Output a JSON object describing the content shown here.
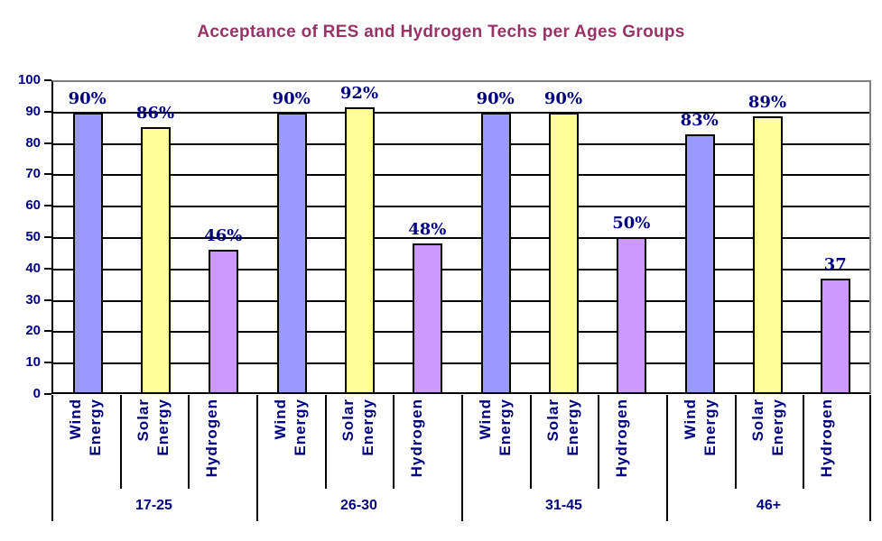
{
  "colors": {
    "title": "#993366",
    "axis_text": "#000080",
    "data_label_text": "#000080",
    "gridline": "#000000",
    "plot_border": "#808080",
    "bar_border": "#000000",
    "wind": "#9999FF",
    "solar": "#FFFF99",
    "hydrogen": "#CC99FF",
    "background": "#FFFFFF"
  },
  "chart_data": {
    "type": "bar",
    "title": "Acceptance of RES and Hydrogen Techs per Ages Groups",
    "xlabel": "",
    "ylabel": "",
    "ylim": [
      0,
      100
    ],
    "yticks": [
      0,
      10,
      20,
      30,
      40,
      50,
      60,
      70,
      80,
      90,
      100
    ],
    "grid": true,
    "legend": false,
    "categories_per_group": [
      "Wind Energy",
      "Solar Energy",
      "Hydrogen"
    ],
    "groups": [
      {
        "label": "17-25",
        "bars": [
          {
            "category": "Wind Energy",
            "series": "wind",
            "value": 90,
            "label": "90%"
          },
          {
            "category": "Solar Energy",
            "series": "solar",
            "value": 85.5,
            "label": "86%"
          },
          {
            "category": "Hydrogen",
            "series": "hydrogen",
            "value": 46,
            "label": "46%"
          }
        ]
      },
      {
        "label": "26-30",
        "bars": [
          {
            "category": "Wind Energy",
            "series": "wind",
            "value": 90,
            "label": "90%"
          },
          {
            "category": "Solar Energy",
            "series": "solar",
            "value": 92,
            "label": "92%"
          },
          {
            "category": "Hydrogen",
            "series": "hydrogen",
            "value": 48,
            "label": "48%"
          }
        ]
      },
      {
        "label": "31-45",
        "bars": [
          {
            "category": "Wind Energy",
            "series": "wind",
            "value": 90,
            "label": "90%"
          },
          {
            "category": "Solar Energy",
            "series": "solar",
            "value": 90,
            "label": "90%"
          },
          {
            "category": "Hydrogen",
            "series": "hydrogen",
            "value": 50,
            "label": "50%"
          }
        ]
      },
      {
        "label": "46+",
        "bars": [
          {
            "category": "Wind Energy",
            "series": "wind",
            "value": 83,
            "label": "83%"
          },
          {
            "category": "Solar Energy",
            "series": "solar",
            "value": 89,
            "label": "89%"
          },
          {
            "category": "Hydrogen",
            "series": "hydrogen",
            "value": 36.5,
            "label": "37"
          }
        ]
      }
    ]
  }
}
